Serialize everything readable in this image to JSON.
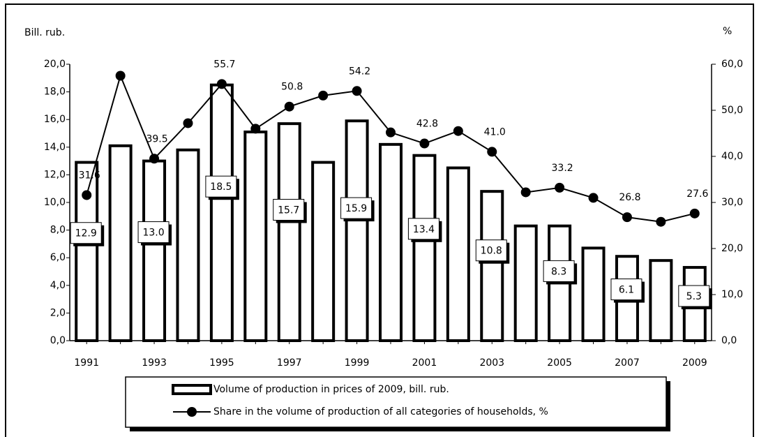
{
  "chart_data": {
    "type": "bar",
    "y_label": "Bill. rub.",
    "y2_label": "%",
    "categories": [
      "1991",
      null,
      "1993",
      null,
      "1995",
      null,
      "1997",
      null,
      "1999",
      null,
      "2001",
      null,
      "2003",
      null,
      "2005",
      null,
      "2007",
      null,
      "2009"
    ],
    "series": [
      {
        "name": "Volume of production in prices of 2009, bill. rub.",
        "type": "bar",
        "color": "#000000",
        "values": [
          12.9,
          14.1,
          13.0,
          13.8,
          18.5,
          15.1,
          15.7,
          12.9,
          15.9,
          14.2,
          13.4,
          12.5,
          10.8,
          8.3,
          8.3,
          6.7,
          6.1,
          5.8,
          5.3
        ],
        "value_labels": [
          "12.9",
          null,
          "13.0",
          null,
          "18.5",
          null,
          "15.7",
          null,
          "15.9",
          null,
          "13.4",
          null,
          "10.8",
          null,
          "8.3",
          null,
          "6.1",
          null,
          "5.3"
        ]
      },
      {
        "name": "Share in the volume of production of all categories of households, %",
        "type": "line",
        "axis": "y2",
        "color": "#000000",
        "values": [
          31.6,
          57.5,
          39.5,
          47.2,
          55.7,
          46.0,
          50.8,
          53.2,
          54.2,
          45.2,
          42.8,
          45.5,
          41.0,
          32.2,
          33.2,
          31.0,
          26.8,
          25.8,
          27.6
        ],
        "value_labels": [
          "31.6",
          null,
          "39.5",
          null,
          "55.7",
          null,
          "50.8",
          null,
          "54.2",
          null,
          "42.8",
          null,
          "41.0",
          null,
          "33.2",
          null,
          "26.8",
          null,
          "27.6"
        ]
      }
    ],
    "ylim": [
      0,
      20
    ],
    "yticks": [
      {
        "value": 0,
        "label": "0,0"
      },
      {
        "value": 2,
        "label": "2,0"
      },
      {
        "value": 4,
        "label": "4,0"
      },
      {
        "value": 6,
        "label": "6,0"
      },
      {
        "value": 8,
        "label": "8,0"
      },
      {
        "value": 10,
        "label": "10,0"
      },
      {
        "value": 12,
        "label": "12,0"
      },
      {
        "value": 14,
        "label": "14,0"
      },
      {
        "value": 16,
        "label": "16,0"
      },
      {
        "value": 18,
        "label": "18,0"
      },
      {
        "value": 20,
        "label": "20,0"
      }
    ],
    "y2lim": [
      0,
      60
    ],
    "y2ticks": [
      {
        "value": 0,
        "label": "0,0"
      },
      {
        "value": 10,
        "label": "10,0"
      },
      {
        "value": 20,
        "label": "20,0"
      },
      {
        "value": 30,
        "label": "30,0"
      },
      {
        "value": 40,
        "label": "40,0"
      },
      {
        "value": 50,
        "label": "50,0"
      },
      {
        "value": 60,
        "label": "60,0"
      }
    ]
  }
}
